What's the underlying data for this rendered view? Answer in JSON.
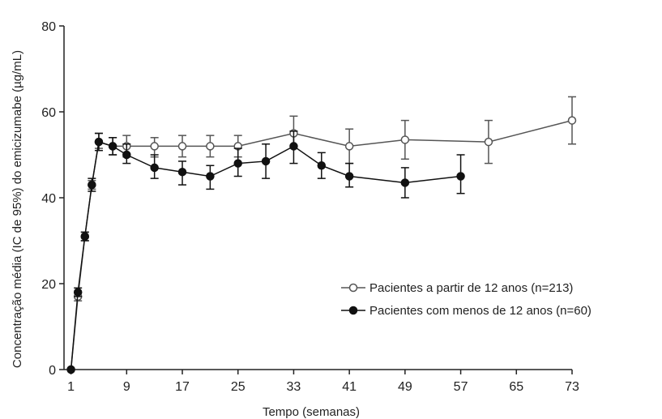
{
  "chart_data": {
    "type": "line",
    "xlabel": "Tempo (semanas)",
    "ylabel": "Concentração média (IC de 95%) do emicizumabe (µg/mL)",
    "xlim": [
      0,
      73
    ],
    "ylim": [
      0,
      80
    ],
    "x_ticks": [
      1,
      9,
      17,
      25,
      33,
      41,
      49,
      57,
      65,
      73
    ],
    "y_ticks": [
      0,
      20,
      40,
      60,
      80
    ],
    "grid": false,
    "legend_position": "center-right",
    "series": [
      {
        "name": "Pacientes a partir de 12 anos (n=213)",
        "marker": "open-circle",
        "color": "#555555",
        "points": [
          {
            "x": 1,
            "y": 0,
            "lo": 0,
            "hi": 0
          },
          {
            "x": 2,
            "y": 17,
            "lo": 16,
            "hi": 18
          },
          {
            "x": 3,
            "y": 31,
            "lo": 30,
            "hi": 32
          },
          {
            "x": 4,
            "y": 43,
            "lo": 42,
            "hi": 44
          },
          {
            "x": 5,
            "y": 53,
            "lo": 51.5,
            "hi": 55
          },
          {
            "x": 7,
            "y": 52,
            "lo": 50,
            "hi": 54
          },
          {
            "x": 9,
            "y": 52,
            "lo": 49.5,
            "hi": 54.5
          },
          {
            "x": 13,
            "y": 52,
            "lo": 49.5,
            "hi": 54
          },
          {
            "x": 17,
            "y": 52,
            "lo": 49.5,
            "hi": 54.5
          },
          {
            "x": 21,
            "y": 52,
            "lo": 49.5,
            "hi": 54.5
          },
          {
            "x": 25,
            "y": 52,
            "lo": 49.5,
            "hi": 54.5
          },
          {
            "x": 33,
            "y": 55,
            "lo": 51.5,
            "hi": 59
          },
          {
            "x": 41,
            "y": 52,
            "lo": 48,
            "hi": 56
          },
          {
            "x": 49,
            "y": 53.5,
            "lo": 49,
            "hi": 58
          },
          {
            "x": 61,
            "y": 53,
            "lo": 48,
            "hi": 58
          },
          {
            "x": 73,
            "y": 58,
            "lo": 52.5,
            "hi": 63.5
          }
        ]
      },
      {
        "name": "Pacientes com menos de 12 anos (n=60)",
        "marker": "filled-circle",
        "color": "#111111",
        "points": [
          {
            "x": 1,
            "y": 0,
            "lo": 0,
            "hi": 0
          },
          {
            "x": 2,
            "y": 18,
            "lo": 17,
            "hi": 19
          },
          {
            "x": 3,
            "y": 31,
            "lo": 30,
            "hi": 32
          },
          {
            "x": 4,
            "y": 43,
            "lo": 41.5,
            "hi": 44.5
          },
          {
            "x": 5,
            "y": 53,
            "lo": 51,
            "hi": 55
          },
          {
            "x": 7,
            "y": 52,
            "lo": 50,
            "hi": 54
          },
          {
            "x": 9,
            "y": 50,
            "lo": 48,
            "hi": 52.5
          },
          {
            "x": 13,
            "y": 47,
            "lo": 44.5,
            "hi": 50
          },
          {
            "x": 17,
            "y": 46,
            "lo": 43,
            "hi": 48.5
          },
          {
            "x": 21,
            "y": 45,
            "lo": 42,
            "hi": 47.5
          },
          {
            "x": 25,
            "y": 48,
            "lo": 45,
            "hi": 51.5
          },
          {
            "x": 29,
            "y": 48.5,
            "lo": 44.5,
            "hi": 52.5
          },
          {
            "x": 33,
            "y": 52,
            "lo": 48,
            "hi": 55.5
          },
          {
            "x": 37,
            "y": 47.5,
            "lo": 44.5,
            "hi": 50.5
          },
          {
            "x": 41,
            "y": 45,
            "lo": 42.5,
            "hi": 48
          },
          {
            "x": 49,
            "y": 43.5,
            "lo": 40,
            "hi": 47
          },
          {
            "x": 57,
            "y": 45,
            "lo": 41,
            "hi": 50
          }
        ]
      }
    ]
  }
}
